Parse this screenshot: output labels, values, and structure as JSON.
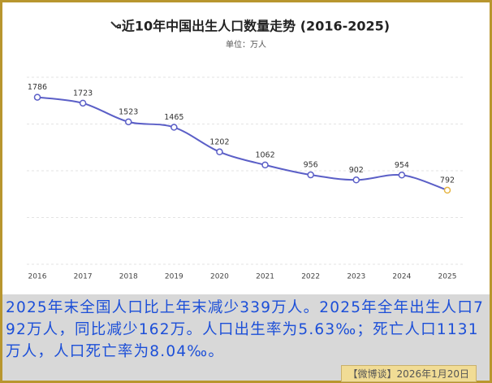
{
  "chart_data": {
    "type": "line",
    "title": "近10年中国出生人口数量走势 (2016-2025)",
    "subtitle": "单位：万人",
    "categories": [
      "2016",
      "2017",
      "2018",
      "2019",
      "2020",
      "2021",
      "2022",
      "2023",
      "2024",
      "2025"
    ],
    "series": [
      {
        "color": "#5b5fc7",
        "last_point_color": "#e6b545",
        "values": [
          1786,
          1723,
          1523,
          1465,
          1202,
          1062,
          956,
          902,
          954,
          792
        ]
      }
    ],
    "ylim": [
      0,
      2000
    ],
    "yticks": [
      0,
      500,
      1000,
      1500,
      2000
    ],
    "grid": true
  },
  "caption": "2025年末全国人口比上年末减少339万人。2025年全年出生人口792万人，同比减少162万。人口出生率为5.63‰；死亡人口1131万人，人口死亡率为8.04‰。",
  "footer": "【微博谈】2026年1月20日"
}
